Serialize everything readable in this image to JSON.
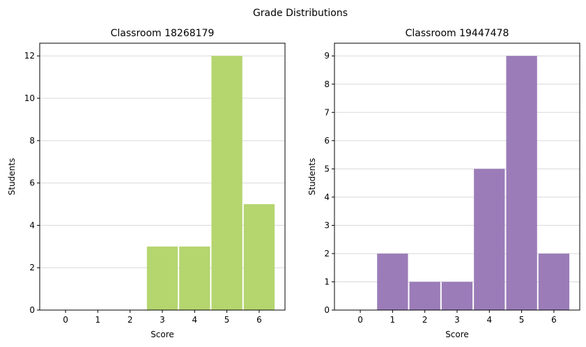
{
  "figure": {
    "title": "Grade Distributions"
  },
  "chart_data": [
    {
      "type": "bar",
      "title": "Classroom 18268179",
      "xlabel": "Score",
      "ylabel": "Students",
      "categories": [
        0,
        1,
        2,
        3,
        4,
        5,
        6
      ],
      "values": [
        0,
        0,
        0,
        3,
        3,
        12,
        5
      ],
      "xlim": [
        -0.8,
        6.8
      ],
      "ylim": [
        0,
        12.6
      ],
      "yticks": [
        0,
        2,
        4,
        6,
        8,
        10,
        12
      ],
      "grid": "horizontal",
      "color": "#b5d56f"
    },
    {
      "type": "bar",
      "title": "Classroom 19447478",
      "xlabel": "Score",
      "ylabel": "Students",
      "categories": [
        0,
        1,
        2,
        3,
        4,
        5,
        6
      ],
      "values": [
        0,
        2,
        1,
        1,
        5,
        9,
        2
      ],
      "xlim": [
        -0.8,
        6.8
      ],
      "ylim": [
        0,
        9.45
      ],
      "yticks": [
        0,
        1,
        2,
        3,
        4,
        5,
        6,
        7,
        8,
        9
      ],
      "grid": "horizontal",
      "color": "#9b7cb8"
    }
  ]
}
